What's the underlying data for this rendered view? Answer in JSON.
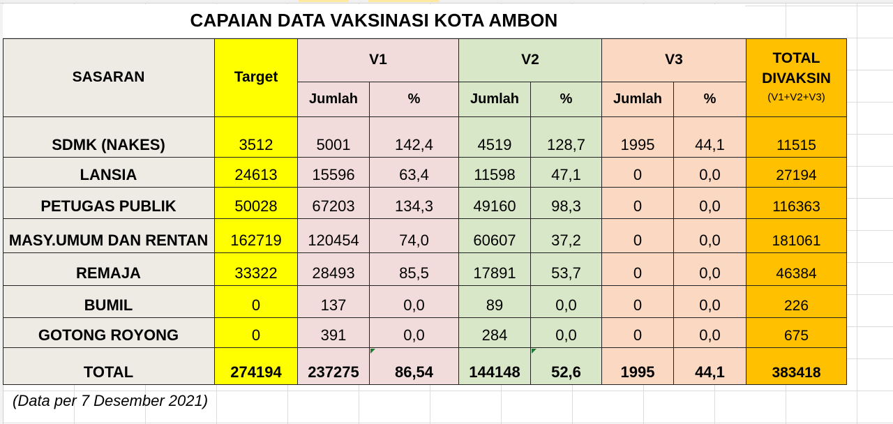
{
  "title": "CAPAIAN DATA VAKSINASI KOTA AMBON",
  "headers": {
    "sasaran": "SASARAN",
    "target": "Target",
    "v1": "V1",
    "v2": "V2",
    "v3": "V3",
    "total_line1": "TOTAL",
    "total_line2": "DIVAKSIN",
    "total_line3": "(V1+V2+V3)",
    "jumlah": "Jumlah",
    "percent": "%"
  },
  "rows": [
    {
      "sasaran": "SDMK (NAKES)",
      "target": "3512",
      "v1_jumlah": "5001",
      "v1_pct": "142,4",
      "v2_jumlah": "4519",
      "v2_pct": "128,7",
      "v3_jumlah": "1995",
      "v3_pct": "44,1",
      "total": "11515"
    },
    {
      "sasaran": "LANSIA",
      "target": "24613",
      "v1_jumlah": "15596",
      "v1_pct": "63,4",
      "v2_jumlah": "11598",
      "v2_pct": "47,1",
      "v3_jumlah": "0",
      "v3_pct": "0,0",
      "total": "27194"
    },
    {
      "sasaran": "PETUGAS PUBLIK",
      "target": "50028",
      "v1_jumlah": "67203",
      "v1_pct": "134,3",
      "v2_jumlah": "49160",
      "v2_pct": "98,3",
      "v3_jumlah": "0",
      "v3_pct": "0,0",
      "total": "116363"
    },
    {
      "sasaran": "MASY.UMUM DAN RENTAN",
      "target": "162719",
      "v1_jumlah": "120454",
      "v1_pct": "74,0",
      "v2_jumlah": "60607",
      "v2_pct": "37,2",
      "v3_jumlah": "0",
      "v3_pct": "0,0",
      "total": "181061"
    },
    {
      "sasaran": "REMAJA",
      "target": "33322",
      "v1_jumlah": "28493",
      "v1_pct": "85,5",
      "v2_jumlah": "17891",
      "v2_pct": "53,7",
      "v3_jumlah": "0",
      "v3_pct": "0,0",
      "total": "46384"
    },
    {
      "sasaran": "BUMIL",
      "target": "0",
      "v1_jumlah": "137",
      "v1_pct": "0,0",
      "v2_jumlah": "89",
      "v2_pct": "0,0",
      "v3_jumlah": "0",
      "v3_pct": "0,0",
      "total": "226"
    },
    {
      "sasaran": "GOTONG ROYONG",
      "target": "0",
      "v1_jumlah": "391",
      "v1_pct": "0,0",
      "v2_jumlah": "284",
      "v2_pct": "0,0",
      "v3_jumlah": "0",
      "v3_pct": "0,0",
      "total": "675"
    }
  ],
  "total_row": {
    "sasaran": "TOTAL",
    "target": "274194",
    "v1_jumlah": "237275",
    "v1_pct": "86,54",
    "v2_jumlah": "144148",
    "v2_pct": "52,6",
    "v3_jumlah": "1995",
    "v3_pct": "44,1",
    "total": "383418"
  },
  "note": "(Data per 7 Desember 2021)",
  "colors": {
    "sasaran": "#eeeae4",
    "target": "#ffff00",
    "v1": "#f2dcdb",
    "v2": "#d9e7c9",
    "v3": "#fad8c2",
    "total": "#ffc000"
  }
}
